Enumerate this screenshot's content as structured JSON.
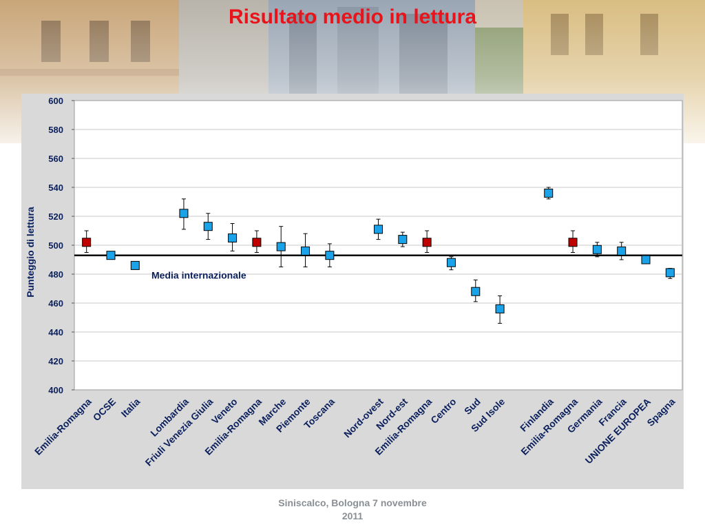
{
  "slide": {
    "title": "Risultato medio in lettura",
    "footer_line1": "Siniscalco, Bologna 7 novembre",
    "footer_line2": "2011"
  },
  "colors": {
    "title": "#e8141b",
    "highlight_marker": "#c00000",
    "default_marker": "#1aa3e8",
    "axis_text": "#0a1f5c",
    "panel_background": "#d9d9d9"
  },
  "chart_data": {
    "type": "scatter",
    "title": "",
    "ylabel": "Punteggio di lettura",
    "xlabel": "",
    "ylim": [
      400,
      600
    ],
    "yticks": [
      400,
      420,
      440,
      460,
      480,
      500,
      520,
      540,
      560,
      580,
      600
    ],
    "grid": true,
    "reference_line": {
      "value": 493,
      "label": "Media internazionale"
    },
    "categories": [
      "Emilia-Romagna",
      "OCSE",
      "Italia",
      "",
      "Lombardia",
      "Friuli Venezia Giulia",
      "Veneto",
      "Emilia-Romagna",
      "Marche",
      "Piemonte",
      "Toscana",
      "",
      "Nord-ovest",
      "Nord-est",
      "Emilia-Romagna",
      "Centro",
      "Sud",
      "Sud Isole",
      "",
      "Finlandia",
      "Emilia-Romagna",
      "Germania",
      "Francia",
      "UNIONE EUROPEA",
      "Spagna"
    ],
    "points": [
      {
        "label": "Emilia-Romagna",
        "value": 502,
        "low": 495,
        "high": 510,
        "highlight": true
      },
      {
        "label": "OCSE",
        "value": 493,
        "low": 492,
        "high": 494,
        "highlight": false
      },
      {
        "label": "Italia",
        "value": 486,
        "low": 484,
        "high": 488,
        "highlight": false
      },
      {
        "label": "Lombardia",
        "value": 522,
        "low": 511,
        "high": 532,
        "highlight": false
      },
      {
        "label": "Friuli Venezia Giulia",
        "value": 513,
        "low": 504,
        "high": 522,
        "highlight": false
      },
      {
        "label": "Veneto",
        "value": 505,
        "low": 496,
        "high": 515,
        "highlight": false
      },
      {
        "label": "Emilia-Romagna",
        "value": 502,
        "low": 495,
        "high": 510,
        "highlight": true
      },
      {
        "label": "Marche",
        "value": 499,
        "low": 485,
        "high": 513,
        "highlight": false
      },
      {
        "label": "Piemonte",
        "value": 496,
        "low": 485,
        "high": 508,
        "highlight": false
      },
      {
        "label": "Toscana",
        "value": 493,
        "low": 485,
        "high": 501,
        "highlight": false
      },
      {
        "label": "Nord-ovest",
        "value": 511,
        "low": 504,
        "high": 518,
        "highlight": false
      },
      {
        "label": "Nord-est",
        "value": 504,
        "low": 499,
        "high": 509,
        "highlight": false
      },
      {
        "label": "Emilia-Romagna",
        "value": 502,
        "low": 495,
        "high": 510,
        "highlight": true
      },
      {
        "label": "Centro",
        "value": 488,
        "low": 483,
        "high": 492,
        "highlight": false
      },
      {
        "label": "Sud",
        "value": 468,
        "low": 461,
        "high": 476,
        "highlight": false
      },
      {
        "label": "Sud Isole",
        "value": 456,
        "low": 446,
        "high": 465,
        "highlight": false
      },
      {
        "label": "Finlandia",
        "value": 536,
        "low": 532,
        "high": 540,
        "highlight": false
      },
      {
        "label": "Emilia-Romagna",
        "value": 502,
        "low": 495,
        "high": 510,
        "highlight": true
      },
      {
        "label": "Germania",
        "value": 497,
        "low": 492,
        "high": 502,
        "highlight": false
      },
      {
        "label": "Francia",
        "value": 496,
        "low": 490,
        "high": 502,
        "highlight": false
      },
      {
        "label": "UNIONE EUROPEA",
        "value": 490,
        "low": 489,
        "high": 492,
        "highlight": false
      },
      {
        "label": "Spagna",
        "value": 481,
        "low": 477,
        "high": 484,
        "highlight": false
      }
    ]
  }
}
